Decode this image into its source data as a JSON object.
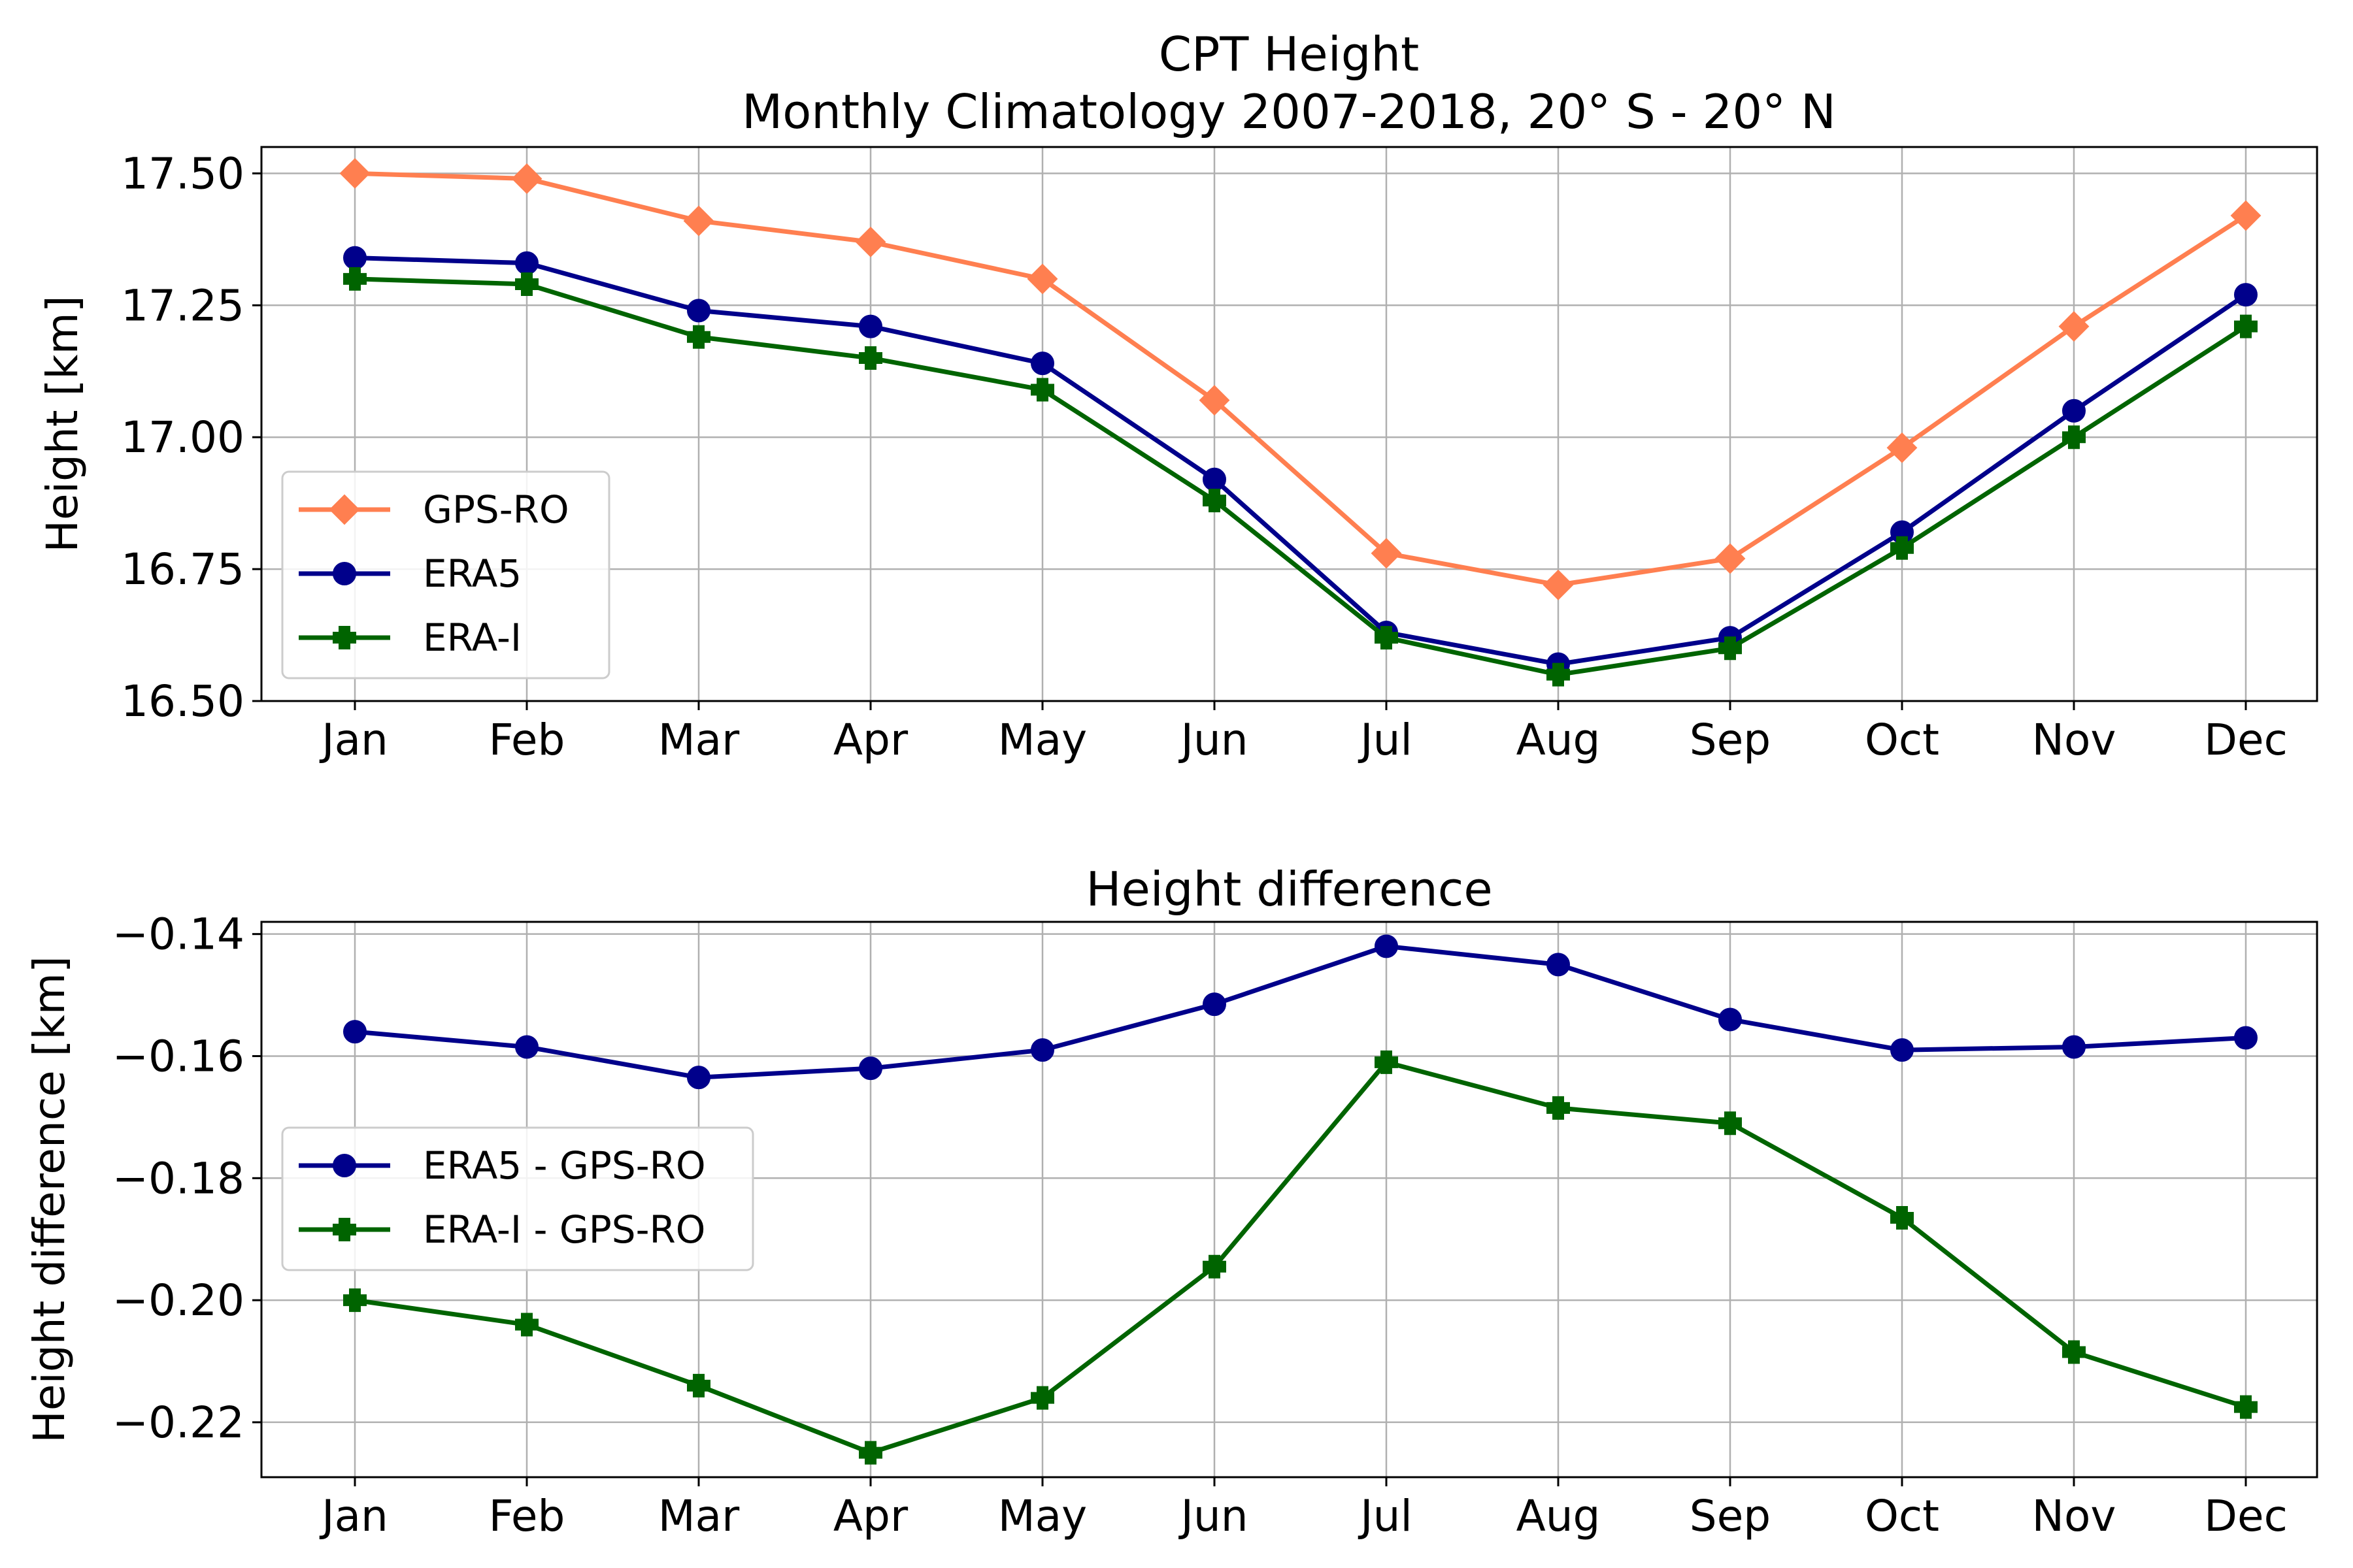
{
  "figure": {
    "title_line1": "CPT Height",
    "title_line2": "Monthly Climatology 2007-2018, 20° S - 20° N"
  },
  "chart_data": [
    {
      "type": "line",
      "title": "",
      "xlabel": "",
      "ylabel": "Height [km]",
      "categories": [
        "Jan",
        "Feb",
        "Mar",
        "Apr",
        "May",
        "Jun",
        "Jul",
        "Aug",
        "Sep",
        "Oct",
        "Nov",
        "Dec"
      ],
      "ylim": [
        16.5,
        17.55
      ],
      "yticks": [
        16.5,
        16.75,
        17.0,
        17.25,
        17.5
      ],
      "ytick_labels": [
        "16.50",
        "16.75",
        "17.00",
        "17.25",
        "17.50"
      ],
      "grid": true,
      "legend_position": "lower-left",
      "series": [
        {
          "name": "GPS-RO",
          "color": "#ff7f50",
          "marker": "diamond",
          "values": [
            17.5,
            17.49,
            17.41,
            17.37,
            17.3,
            17.07,
            16.78,
            16.72,
            16.77,
            16.98,
            17.21,
            17.42
          ]
        },
        {
          "name": "ERA5",
          "color": "#00008b",
          "marker": "circle",
          "values": [
            17.34,
            17.33,
            17.24,
            17.21,
            17.14,
            16.92,
            16.63,
            16.57,
            16.62,
            16.82,
            17.05,
            17.27
          ]
        },
        {
          "name": "ERA-I",
          "color": "#006400",
          "marker": "plus",
          "values": [
            17.3,
            17.29,
            17.19,
            17.15,
            17.09,
            16.88,
            16.62,
            16.55,
            16.6,
            16.79,
            17.0,
            17.21
          ]
        }
      ]
    },
    {
      "type": "line",
      "title": "Height difference",
      "xlabel": "",
      "ylabel": "Height difference [km]",
      "categories": [
        "Jan",
        "Feb",
        "Mar",
        "Apr",
        "May",
        "Jun",
        "Jul",
        "Aug",
        "Sep",
        "Oct",
        "Nov",
        "Dec"
      ],
      "ylim": [
        -0.229,
        -0.138
      ],
      "yticks": [
        -0.22,
        -0.2,
        -0.18,
        -0.16,
        -0.14
      ],
      "ytick_labels": [
        "−0.22",
        "−0.20",
        "−0.18",
        "−0.16",
        "−0.14"
      ],
      "grid": true,
      "legend_position": "center-left",
      "series": [
        {
          "name": "ERA5 - GPS-RO",
          "color": "#00008b",
          "marker": "circle",
          "values": [
            -0.156,
            -0.1585,
            -0.1635,
            -0.162,
            -0.159,
            -0.1515,
            -0.142,
            -0.145,
            -0.154,
            -0.159,
            -0.1585,
            -0.157
          ]
        },
        {
          "name": "ERA-I - GPS-RO",
          "color": "#006400",
          "marker": "plus",
          "values": [
            -0.2,
            -0.204,
            -0.214,
            -0.225,
            -0.216,
            -0.1945,
            -0.161,
            -0.1685,
            -0.171,
            -0.1865,
            -0.2085,
            -0.2175
          ]
        }
      ]
    }
  ]
}
